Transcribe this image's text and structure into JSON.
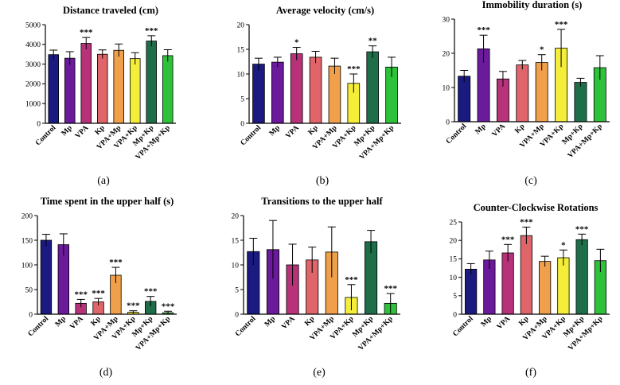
{
  "groups": [
    "Control",
    "Mp",
    "VPA",
    "Kp",
    "VPA+Mp",
    "VPA+Kp",
    "Mp+Kp",
    "VPA+Mp+Kp"
  ],
  "colors": [
    "#1a1a80",
    "#6a1a9a",
    "#b8327a",
    "#e0656b",
    "#f0a04a",
    "#f4ee3a",
    "#1e6e4a",
    "#2ec13a"
  ],
  "chart_data": [
    {
      "type": "bar",
      "label": "(a)",
      "title": "Distance traveled (cm)",
      "categories": [
        "Control",
        "Mp",
        "VPA",
        "Kp",
        "VPA+Mp",
        "VPA+Kp",
        "Mp+Kp",
        "VPA+Mp+Kp"
      ],
      "values": [
        3480,
        3300,
        4050,
        3500,
        3700,
        3280,
        4170,
        3430
      ],
      "errors": [
        230,
        330,
        300,
        220,
        320,
        300,
        270,
        300
      ],
      "significance": [
        "",
        "",
        "***",
        "",
        "",
        "",
        "***",
        ""
      ],
      "ylim": [
        0,
        5000
      ],
      "yticks": [
        0,
        1000,
        2000,
        3000,
        4000,
        5000
      ]
    },
    {
      "type": "bar",
      "label": "(b)",
      "title": "Average velocity (cm/s)",
      "categories": [
        "Control",
        "Mp",
        "VPA",
        "Kp",
        "VPA+Mp",
        "VPA+Kp",
        "Mp+Kp",
        "VPA+Mp+Kp"
      ],
      "values": [
        12.0,
        12.4,
        14.1,
        13.4,
        11.6,
        8.1,
        14.5,
        11.4
      ],
      "errors": [
        1.2,
        1.0,
        1.3,
        1.2,
        1.6,
        1.9,
        1.2,
        2.0
      ],
      "significance": [
        "",
        "",
        "*",
        "",
        "",
        "***",
        "**",
        ""
      ],
      "ylim": [
        0,
        20
      ],
      "yticks": [
        0,
        5,
        10,
        15,
        20
      ]
    },
    {
      "type": "bar",
      "label": "(c)",
      "title": "Immobility duration (s)",
      "categories": [
        "Control",
        "Mp",
        "VPA",
        "Kp",
        "VPA+Mp",
        "VPA+Kp",
        "Mp+Kp",
        "VPA+Mp+Kp"
      ],
      "values": [
        13.3,
        21.3,
        12.5,
        16.6,
        17.3,
        21.5,
        11.5,
        15.8
      ],
      "errors": [
        1.7,
        4.0,
        2.2,
        1.3,
        2.3,
        5.5,
        1.2,
        3.5
      ],
      "significance": [
        "",
        "***",
        "",
        "",
        "*",
        "***",
        "",
        ""
      ],
      "ylim": [
        0,
        30
      ],
      "yticks": [
        0,
        10,
        20,
        30
      ]
    },
    {
      "type": "bar",
      "label": "(d)",
      "title": "Time spent in the upper half (s)",
      "categories": [
        "Control",
        "Mp",
        "VPA",
        "Kp",
        "VPA+Mp",
        "VPA+Kp",
        "Mp+Kp",
        "VPA+Mp+Kp"
      ],
      "values": [
        150,
        141,
        22,
        25,
        79,
        4,
        26,
        3
      ],
      "errors": [
        12,
        22,
        8,
        7,
        16,
        3,
        10,
        3
      ],
      "significance": [
        "",
        "",
        "***",
        "***",
        "***",
        "***",
        "***",
        "***"
      ],
      "ylim": [
        0,
        200
      ],
      "yticks": [
        0,
        50,
        100,
        150,
        200
      ]
    },
    {
      "type": "bar",
      "label": "(e)",
      "title": "Transitions to the upper half",
      "categories": [
        "Control",
        "Mp",
        "VPA",
        "Kp",
        "VPA+Mp",
        "VPA+Kp",
        "Mp+Kp",
        "VPA+Mp+Kp"
      ],
      "values": [
        12.7,
        13.1,
        10.0,
        11.0,
        12.6,
        3.4,
        14.7,
        2.2
      ],
      "errors": [
        2.7,
        5.9,
        4.2,
        2.6,
        5.1,
        2.6,
        2.3,
        2.0
      ],
      "significance": [
        "",
        "",
        "",
        "",
        "",
        "***",
        "",
        "***"
      ],
      "ylim": [
        0,
        20
      ],
      "yticks": [
        0,
        5,
        10,
        15,
        20
      ]
    },
    {
      "type": "bar",
      "label": "(f)",
      "title": "Counter-Clockwise Rotations",
      "categories": [
        "Control",
        "Mp",
        "VPA",
        "Kp",
        "VPA+Mp",
        "VPA+Kp",
        "Mp+Kp",
        "VPA+Mp+Kp"
      ],
      "values": [
        12.2,
        14.7,
        16.6,
        21.3,
        14.3,
        15.3,
        20.2,
        14.5
      ],
      "errors": [
        1.5,
        2.4,
        2.3,
        2.3,
        1.4,
        2.1,
        1.5,
        3.1
      ],
      "significance": [
        "",
        "",
        "***",
        "***",
        "",
        "*",
        "***",
        ""
      ],
      "ylim": [
        0,
        25
      ],
      "yticks": [
        0,
        5,
        10,
        15,
        20,
        25
      ]
    }
  ]
}
